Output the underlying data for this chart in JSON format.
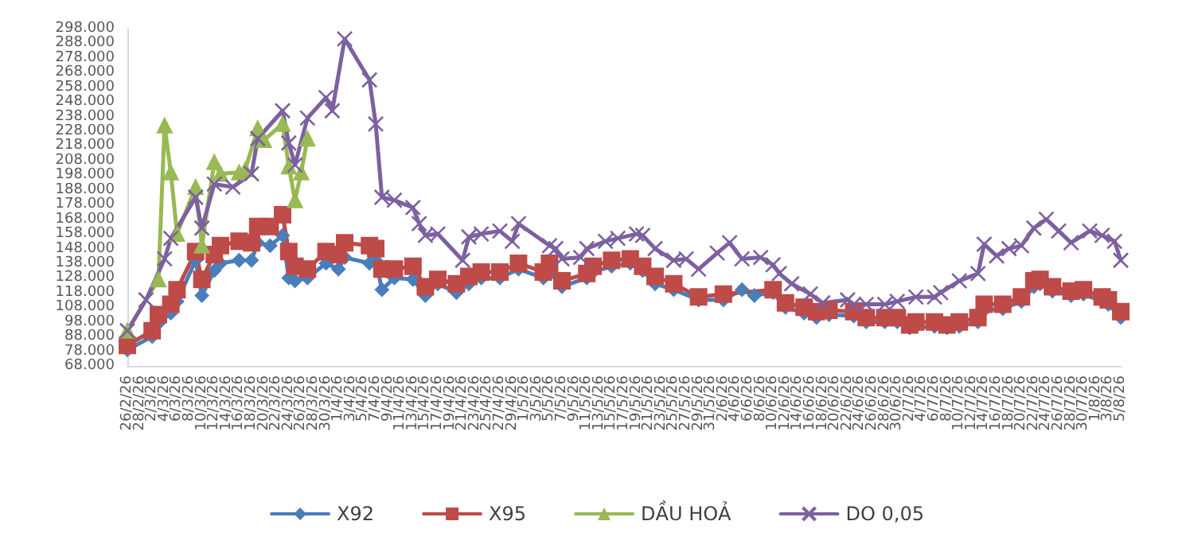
{
  "chart_data": {
    "type": "line",
    "categories": [
      "26/2/26",
      null,
      "28/2/26",
      null,
      "2/3/26",
      null,
      "4/3/26",
      null,
      "6/3/26",
      null,
      "8/3/26",
      null,
      "10/3/26",
      null,
      "12/3/26",
      null,
      "14/3/26",
      null,
      "16/3/26",
      null,
      "18/3/26",
      null,
      "20/3/26",
      null,
      "22/3/26",
      null,
      "24/3/26",
      null,
      "26/3/26",
      null,
      "28/3/26",
      null,
      "30/3/26",
      null,
      "1/4/26",
      null,
      "3/4/26",
      null,
      "5/4/26",
      null,
      "7/4/26",
      null,
      "9/4/26",
      null,
      "11/4/26",
      null,
      "13/4/26",
      null,
      "15/4/26",
      null,
      "17/4/26",
      null,
      "19/4/26",
      null,
      "21/4/26",
      null,
      "23/4/26",
      null,
      "25/4/26",
      null,
      "27/4/26",
      null,
      "29/4/26",
      null,
      "1/5/26",
      null,
      "3/5/26",
      null,
      "5/5/26",
      null,
      "7/5/26",
      null,
      "9/5/26",
      null,
      "11/5/26",
      null,
      "13/5/26",
      null,
      "15/5/26",
      null,
      "17/5/26",
      null,
      "19/5/26",
      null,
      "21/5/26",
      null,
      "23/5/26",
      null,
      "25/5/26",
      null,
      "27/5/26",
      null,
      "29/5/26",
      null,
      "31/5/26",
      null,
      "2/6/26",
      null,
      "4/6/26",
      null,
      "6/6/26",
      null,
      "8/6/26",
      null,
      "10/6/26",
      null,
      "12/6/26",
      null,
      "14/6/26",
      null,
      "16/6/26",
      null,
      "18/6/26",
      null,
      "20/6/26",
      null,
      "22/6/26",
      null,
      "24/6/26",
      null,
      "26/6/26",
      null,
      "28/6/26",
      null,
      "30/6/26",
      null,
      "2/7/26",
      null,
      "4/7/26",
      null,
      "6/7/26",
      null,
      "8/7/26",
      null,
      "10/7/26",
      null,
      "12/7/26",
      null,
      "14/7/26",
      null,
      "16/7/26",
      null,
      "18/7/26",
      null,
      "20/7/26",
      null,
      "22/7/26",
      null,
      "24/7/26",
      null,
      "26/7/26",
      null,
      "28/7/26",
      null,
      "30/7/26",
      null,
      "1/8/26",
      null,
      "3/8/26",
      null,
      "5/8/26"
    ],
    "series": [
      {
        "name": "X92",
        "color": "#4a7ebb",
        "marker": "diamond",
        "values": [
          79,
          null,
          null,
          null,
          88,
          97,
          null,
          104,
          112,
          null,
          null,
          140,
          116,
          null,
          133,
          138,
          null,
          null,
          140,
          null,
          140,
          152,
          null,
          150,
          null,
          157,
          128,
          126,
          null,
          128,
          null,
          null,
          138,
          null,
          134,
          142,
          null,
          null,
          null,
          138,
          140,
          120,
          null,
          128,
          null,
          null,
          127,
          null,
          116,
          null,
          124,
          null,
          null,
          118,
          null,
          124,
          null,
          128,
          null,
          null,
          128,
          null,
          null,
          134,
          null,
          null,
          null,
          128,
          132,
          null,
          122,
          null,
          null,
          null,
          128,
          132,
          null,
          null,
          136,
          null,
          null,
          138,
          null,
          133,
          null,
          124,
          null,
          null,
          120,
          null,
          null,
          null,
          113,
          null,
          null,
          null,
          113,
          null,
          null,
          120,
          null,
          116,
          null,
          null,
          118,
          null,
          108,
          null,
          null,
          104,
          null,
          101,
          null,
          103,
          null,
          null,
          null,
          102,
          null,
          98,
          null,
          null,
          98,
          null,
          98,
          null,
          94,
          null,
          null,
          null,
          95,
          null,
          94,
          null,
          95,
          null,
          null,
          98,
          106,
          null,
          null,
          107,
          null,
          null,
          112,
          null,
          122,
          124,
          null,
          119,
          null,
          null,
          116,
          null,
          117,
          null,
          null,
          112,
          110,
          null,
          101
        ]
      },
      {
        "name": "X95",
        "color": "#be4b48",
        "marker": "square",
        "values": [
          82,
          null,
          null,
          null,
          92,
          103,
          null,
          110,
          120,
          null,
          null,
          146,
          127,
          null,
          144,
          150,
          null,
          null,
          153,
          null,
          152,
          163,
          null,
          163,
          null,
          171,
          146,
          136,
          null,
          134,
          null,
          null,
          146,
          null,
          144,
          152,
          null,
          null,
          null,
          150,
          148,
          134,
          null,
          134,
          null,
          null,
          136,
          null,
          122,
          null,
          127,
          null,
          null,
          124,
          null,
          129,
          null,
          132,
          null,
          null,
          132,
          null,
          null,
          138,
          null,
          null,
          null,
          132,
          138,
          null,
          126,
          null,
          null,
          null,
          131,
          136,
          null,
          null,
          140,
          null,
          null,
          141,
          null,
          136,
          null,
          129,
          null,
          null,
          124,
          null,
          null,
          null,
          115,
          null,
          null,
          null,
          117,
          null,
          null,
          null,
          null,
          null,
          null,
          null,
          120,
          null,
          111,
          null,
          null,
          108,
          null,
          105,
          null,
          106,
          null,
          null,
          null,
          105,
          null,
          101,
          null,
          null,
          101,
          null,
          101,
          null,
          96,
          98,
          null,
          null,
          98,
          null,
          96,
          null,
          98,
          null,
          null,
          101,
          110,
          null,
          null,
          110,
          null,
          null,
          115,
          null,
          126,
          127,
          null,
          122,
          null,
          null,
          119,
          null,
          120,
          null,
          null,
          115,
          113,
          null,
          105
        ]
      },
      {
        "name": "DẦU HOẢ",
        "color": "#98b954",
        "marker": "triangle",
        "values": [
          92,
          null,
          null,
          null,
          null,
          127,
          232,
          200,
          158,
          null,
          null,
          190,
          150,
          null,
          207,
          199,
          null,
          null,
          200,
          202,
          null,
          230,
          222,
          null,
          null,
          233,
          204,
          181,
          200,
          223,
          null,
          null,
          null,
          null,
          null,
          null,
          null,
          null,
          null,
          null,
          null,
          null,
          null,
          null,
          null,
          null,
          null,
          null,
          null,
          null,
          null,
          null,
          null,
          null,
          null,
          null,
          null,
          null,
          null,
          null,
          null,
          null,
          null,
          null,
          null,
          null,
          null,
          null,
          null,
          null,
          null,
          null,
          null,
          null,
          null,
          null,
          null,
          null,
          null,
          null,
          null,
          null,
          null,
          null,
          null,
          null,
          null,
          null,
          null,
          null,
          null,
          null,
          null,
          null,
          null,
          null,
          null,
          null,
          null,
          null,
          null,
          null,
          null,
          null,
          null,
          null,
          null,
          null,
          null,
          null,
          null,
          null,
          null,
          null,
          null,
          null,
          null,
          null,
          null,
          null,
          null,
          null,
          null,
          null,
          null,
          null,
          null,
          null,
          null,
          null,
          null,
          null,
          null,
          null,
          null,
          null,
          null,
          null,
          null,
          null,
          null,
          null,
          null,
          null,
          null,
          null,
          null,
          null,
          null,
          null,
          null,
          null,
          null,
          null,
          null,
          null,
          null,
          null,
          null,
          null,
          null
        ]
      },
      {
        "name": "DO 0,05",
        "color": "#7d60a0",
        "marker": "cross",
        "values": [
          92,
          null,
          null,
          113,
          null,
          null,
          141,
          155,
          null,
          null,
          null,
          183,
          162,
          null,
          192,
          null,
          null,
          190,
          null,
          null,
          199,
          223,
          null,
          null,
          null,
          242,
          220,
          205,
          null,
          237,
          null,
          null,
          251,
          242,
          null,
          291,
          null,
          null,
          null,
          263,
          233,
          183,
          null,
          181,
          null,
          null,
          176,
          165,
          157,
          null,
          158,
          null,
          null,
          null,
          140,
          156,
          null,
          158,
          null,
          null,
          160,
          null,
          153,
          165,
          null,
          null,
          null,
          null,
          150,
          148,
          141,
          null,
          null,
          142,
          148,
          null,
          null,
          153,
          null,
          155,
          null,
          null,
          158,
          157,
          null,
          148,
          null,
          null,
          140,
          null,
          141,
          null,
          134,
          null,
          null,
          145,
          null,
          152,
          null,
          141,
          null,
          null,
          142,
          null,
          137,
          131,
          null,
          124,
          null,
          null,
          117,
          null,
          111,
          null,
          null,
          null,
          113,
          110,
          null,
          110,
          null,
          null,
          110,
          null,
          112,
          null,
          null,
          115,
          null,
          null,
          115,
          118,
          null,
          null,
          126,
          null,
          null,
          131,
          151,
          null,
          143,
          null,
          148,
          null,
          150,
          null,
          162,
          null,
          168,
          null,
          160,
          null,
          152,
          null,
          null,
          160,
          null,
          157,
          null,
          153,
          140
        ]
      }
    ],
    "ylim": [
      68,
      298
    ],
    "yticks": [
      {
        "value": 68,
        "label": "68.000"
      },
      {
        "value": 78,
        "label": "78.000"
      },
      {
        "value": 88,
        "label": "88.000"
      },
      {
        "value": 98,
        "label": "98.000"
      },
      {
        "value": 108,
        "label": "108.000"
      },
      {
        "value": 118,
        "label": "118.000"
      },
      {
        "value": 128,
        "label": "128.000"
      },
      {
        "value": 138,
        "label": "138.000"
      },
      {
        "value": 148,
        "label": "148.000"
      },
      {
        "value": 158,
        "label": "158.000"
      },
      {
        "value": 168,
        "label": "168.000"
      },
      {
        "value": 178,
        "label": "178.000"
      },
      {
        "value": 188,
        "label": "188.000"
      },
      {
        "value": 198,
        "label": "198.000"
      },
      {
        "value": 208,
        "label": "208.000"
      },
      {
        "value": 218,
        "label": "218.000"
      },
      {
        "value": 228,
        "label": "228.000"
      },
      {
        "value": 238,
        "label": "238.000"
      },
      {
        "value": 248,
        "label": "248.000"
      },
      {
        "value": 258,
        "label": "258.000"
      },
      {
        "value": 268,
        "label": "268.000"
      },
      {
        "value": 278,
        "label": "278.000"
      },
      {
        "value": 288,
        "label": "288.000"
      },
      {
        "value": 298,
        "label": "298.000"
      }
    ],
    "grid": false,
    "legend": "bottom",
    "line_style": "solid"
  }
}
